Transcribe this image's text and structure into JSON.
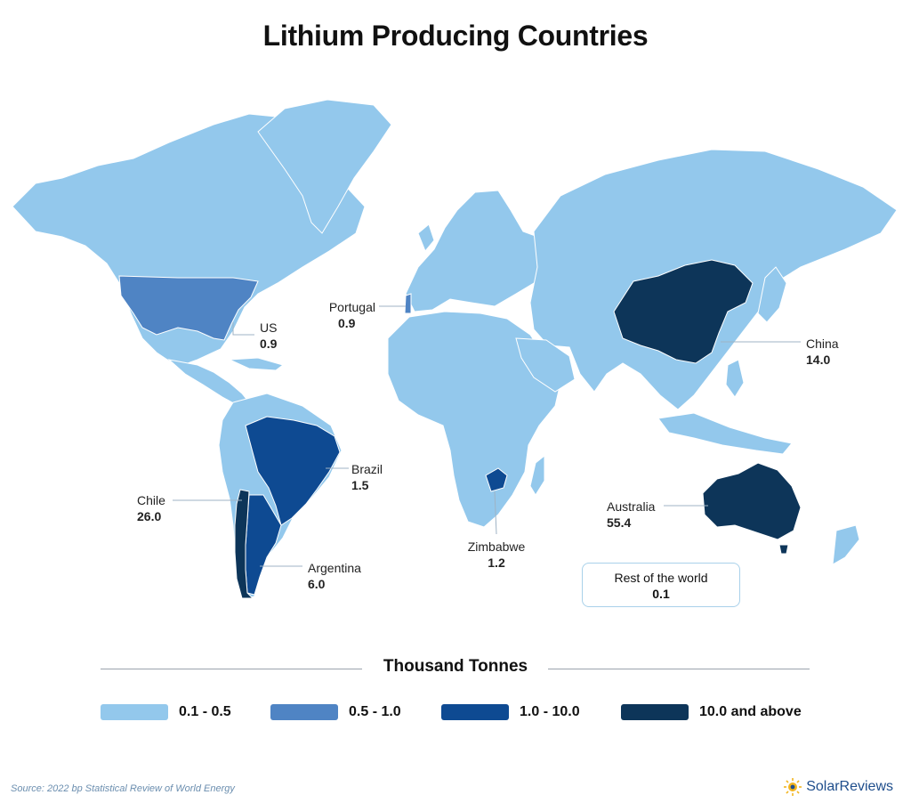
{
  "title": "Lithium Producing Countries",
  "colors": {
    "bin_0": "#93c8ec",
    "bin_1": "#4f84c4",
    "bin_2": "#0e4a92",
    "bin_3": "#0d3559"
  },
  "countries": [
    {
      "name": "US",
      "value": "0.9"
    },
    {
      "name": "Portugal",
      "value": "0.9"
    },
    {
      "name": "China",
      "value": "14.0"
    },
    {
      "name": "Brazil",
      "value": "1.5"
    },
    {
      "name": "Chile",
      "value": "26.0"
    },
    {
      "name": "Argentina",
      "value": "6.0"
    },
    {
      "name": "Zimbabwe",
      "value": "1.2"
    },
    {
      "name": "Australia",
      "value": "55.4"
    }
  ],
  "rest_of_world": {
    "name": "Rest of the world",
    "value": "0.1"
  },
  "legend": {
    "heading": "Thousand Tonnes",
    "items": [
      {
        "label": "0.1 - 0.5",
        "color": "#93c8ec"
      },
      {
        "label": "0.5 - 1.0",
        "color": "#4f84c4"
      },
      {
        "label": "1.0 - 10.0",
        "color": "#0e4a92"
      },
      {
        "label": "10.0 and above",
        "color": "#0d3559"
      }
    ]
  },
  "source": "Source: 2022 bp Statistical Review of World Energy",
  "brand": "SolarReviews"
}
